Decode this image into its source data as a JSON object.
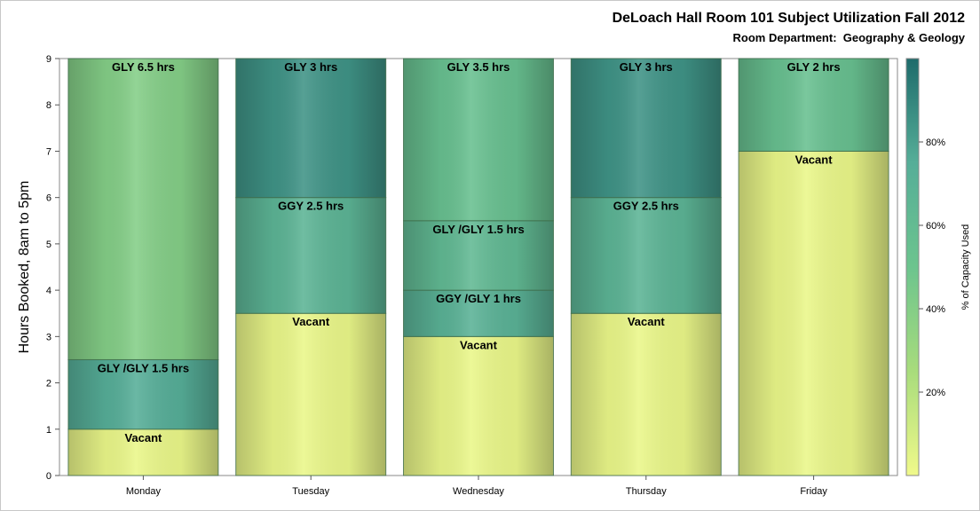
{
  "chart_data": {
    "type": "bar",
    "stacked": true,
    "title": "DeLoach Hall Room 101 Subject Utilization Fall 2012",
    "subtitle": "Room Department:  Geography & Geology",
    "xlabel": "",
    "ylabel": "Hours Booked, 8am to 5pm",
    "ylim": [
      0,
      9
    ],
    "yticks": [
      "0",
      "1",
      "2",
      "3",
      "4",
      "5",
      "6",
      "7",
      "8",
      "9"
    ],
    "grid": false,
    "categories": [
      "Monday",
      "Tuesday",
      "Wednesday",
      "Thursday",
      "Friday"
    ],
    "stacks": [
      [
        {
          "label": "Vacant",
          "from": 0,
          "to": 1,
          "capacity": 2
        },
        {
          "label": "GLY /GLY 1.5 hrs",
          "from": 1,
          "to": 2.5,
          "capacity": 75
        },
        {
          "label": "GLY 6.5 hrs",
          "from": 2.5,
          "to": 9,
          "capacity": 40
        }
      ],
      [
        {
          "label": "Vacant",
          "from": 0,
          "to": 3.5,
          "capacity": 2
        },
        {
          "label": "GGY 2.5 hrs",
          "from": 3.5,
          "to": 6,
          "capacity": 68
        },
        {
          "label": "GLY 3 hrs",
          "from": 6,
          "to": 9,
          "capacity": 85
        }
      ],
      [
        {
          "label": "Vacant",
          "from": 0,
          "to": 3,
          "capacity": 2
        },
        {
          "label": "GGY /GLY 1 hrs",
          "from": 3,
          "to": 4,
          "capacity": 70
        },
        {
          "label": "GLY /GLY 1.5 hrs",
          "from": 4,
          "to": 5.5,
          "capacity": 62
        },
        {
          "label": "GLY 3.5 hrs",
          "from": 5.5,
          "to": 9,
          "capacity": 55
        }
      ],
      [
        {
          "label": "Vacant",
          "from": 0,
          "to": 3.5,
          "capacity": 2
        },
        {
          "label": "GGY 2.5 hrs",
          "from": 3.5,
          "to": 6,
          "capacity": 68
        },
        {
          "label": "GLY 3 hrs",
          "from": 6,
          "to": 9,
          "capacity": 85
        }
      ],
      [
        {
          "label": "Vacant",
          "from": 0,
          "to": 7,
          "capacity": 2
        },
        {
          "label": "GLY 2 hrs",
          "from": 7,
          "to": 9,
          "capacity": 55
        }
      ]
    ],
    "colorbar": {
      "label": "% of Capacity Used",
      "ticks": [
        {
          "value": 20,
          "label": "20%"
        },
        {
          "value": 40,
          "label": "40%"
        },
        {
          "value": 60,
          "label": "60%"
        },
        {
          "value": 80,
          "label": "80%"
        }
      ],
      "range": [
        0,
        100
      ],
      "stops": [
        "#f0f98a",
        "#a8dc7c",
        "#6cc48e",
        "#56ae98",
        "#1d6b6b"
      ]
    }
  }
}
